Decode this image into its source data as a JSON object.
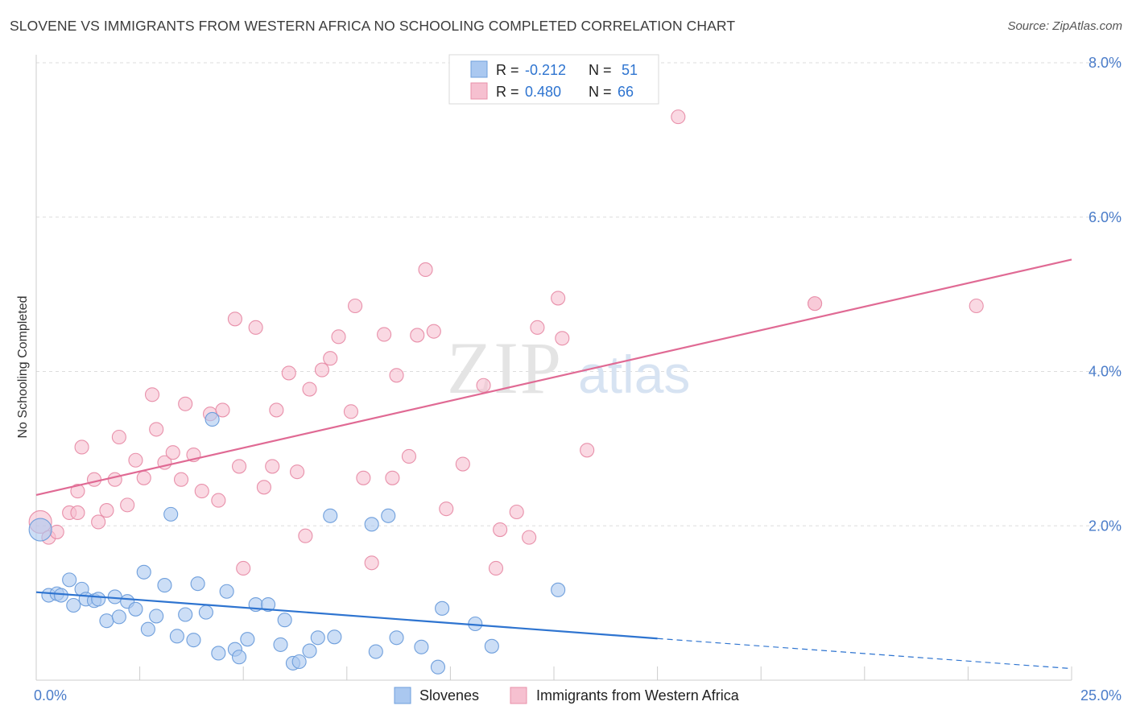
{
  "title": "SLOVENE VS IMMIGRANTS FROM WESTERN AFRICA NO SCHOOLING COMPLETED CORRELATION CHART",
  "source": "Source: ZipAtlas.com",
  "watermark": {
    "zip": "ZIP",
    "atlas": "atlas"
  },
  "legend": {
    "rows": [
      {
        "r_label": "R =",
        "r_value": "-0.212",
        "n_label": "N =",
        "n_value": "51"
      },
      {
        "r_label": "R =",
        "r_value": "0.480",
        "n_label": "N =",
        "n_value": "66"
      }
    ]
  },
  "bottom_legend": [
    "Slovenes",
    "Immigrants from Western Africa"
  ],
  "colors": {
    "blue_fill": "#aac8f0",
    "blue_stroke": "#6f9fdc",
    "blue_line": "#2e74d0",
    "pink_fill": "#f6c0d0",
    "pink_stroke": "#e890aa",
    "pink_line": "#e06a94",
    "tick_label": "#4a7cc9",
    "grid": "#dddddd"
  },
  "chart_data": {
    "type": "scatter",
    "title": "SLOVENE VS IMMIGRANTS FROM WESTERN AFRICA NO SCHOOLING COMPLETED CORRELATION CHART",
    "xlabel": "",
    "ylabel": "No Schooling Completed",
    "xlim": [
      0,
      25
    ],
    "ylim": [
      0,
      8
    ],
    "x_ticks": [
      "0.0%",
      "25.0%"
    ],
    "y_ticks": [
      {
        "value": 2,
        "label": "2.0%"
      },
      {
        "value": 4,
        "label": "4.0%"
      },
      {
        "value": 6,
        "label": "6.0%"
      },
      {
        "value": 8,
        "label": "8.0%"
      }
    ],
    "grid": true,
    "legend_position": "top-center",
    "series": [
      {
        "name": "Slovenes",
        "r": -0.212,
        "n": 51,
        "trend": {
          "x0": 0,
          "y0": 1.14,
          "x1": 15,
          "y1": 0.54,
          "dash_x1": 25,
          "dash_y1": 0.15
        },
        "points": [
          [
            0.1,
            1.95
          ],
          [
            0.3,
            1.1
          ],
          [
            0.5,
            1.12
          ],
          [
            0.6,
            1.1
          ],
          [
            0.8,
            1.3
          ],
          [
            0.9,
            0.97
          ],
          [
            1.1,
            1.18
          ],
          [
            1.2,
            1.05
          ],
          [
            1.4,
            1.03
          ],
          [
            1.5,
            1.05
          ],
          [
            1.7,
            0.77
          ],
          [
            1.9,
            1.08
          ],
          [
            2.0,
            0.82
          ],
          [
            2.2,
            1.02
          ],
          [
            2.4,
            0.92
          ],
          [
            2.6,
            1.4
          ],
          [
            2.7,
            0.66
          ],
          [
            2.9,
            0.83
          ],
          [
            3.1,
            1.23
          ],
          [
            3.25,
            2.15
          ],
          [
            3.4,
            0.57
          ],
          [
            3.6,
            0.85
          ],
          [
            3.8,
            0.52
          ],
          [
            3.9,
            1.25
          ],
          [
            4.1,
            0.88
          ],
          [
            4.25,
            3.38
          ],
          [
            4.4,
            0.35
          ],
          [
            4.6,
            1.15
          ],
          [
            4.8,
            0.4
          ],
          [
            4.9,
            0.3
          ],
          [
            5.1,
            0.53
          ],
          [
            5.3,
            0.98
          ],
          [
            5.6,
            0.98
          ],
          [
            5.9,
            0.46
          ],
          [
            6.0,
            0.78
          ],
          [
            6.2,
            0.22
          ],
          [
            6.35,
            0.24
          ],
          [
            6.6,
            0.38
          ],
          [
            6.8,
            0.55
          ],
          [
            7.1,
            2.13
          ],
          [
            7.2,
            0.56
          ],
          [
            8.1,
            2.02
          ],
          [
            8.2,
            0.37
          ],
          [
            8.5,
            2.13
          ],
          [
            8.7,
            0.55
          ],
          [
            9.3,
            0.43
          ],
          [
            9.7,
            0.17
          ],
          [
            9.8,
            0.93
          ],
          [
            10.6,
            0.73
          ],
          [
            11.0,
            0.44
          ],
          [
            12.6,
            1.17
          ]
        ]
      },
      {
        "name": "Immigrants from Western Africa",
        "r": 0.48,
        "n": 66,
        "trend": {
          "x0": 0,
          "y0": 2.4,
          "x1": 25,
          "y1": 5.45
        },
        "points": [
          [
            0.1,
            2.05
          ],
          [
            0.3,
            1.85
          ],
          [
            0.5,
            1.92
          ],
          [
            0.8,
            2.17
          ],
          [
            1.0,
            2.17
          ],
          [
            1.0,
            2.45
          ],
          [
            1.1,
            3.02
          ],
          [
            1.4,
            2.6
          ],
          [
            1.5,
            2.05
          ],
          [
            1.7,
            2.2
          ],
          [
            1.9,
            2.6
          ],
          [
            2.0,
            3.15
          ],
          [
            2.2,
            2.27
          ],
          [
            2.4,
            2.85
          ],
          [
            2.6,
            2.62
          ],
          [
            2.8,
            3.7
          ],
          [
            2.9,
            3.25
          ],
          [
            3.1,
            2.82
          ],
          [
            3.3,
            2.95
          ],
          [
            3.5,
            2.6
          ],
          [
            3.6,
            3.58
          ],
          [
            3.8,
            2.92
          ],
          [
            4.0,
            2.45
          ],
          [
            4.2,
            3.45
          ],
          [
            4.4,
            2.33
          ],
          [
            4.5,
            3.5
          ],
          [
            4.8,
            4.68
          ],
          [
            4.9,
            2.77
          ],
          [
            5.0,
            1.45
          ],
          [
            5.3,
            4.57
          ],
          [
            5.5,
            2.5
          ],
          [
            5.7,
            2.77
          ],
          [
            5.8,
            3.5
          ],
          [
            6.1,
            3.98
          ],
          [
            6.3,
            2.7
          ],
          [
            6.5,
            1.87
          ],
          [
            6.6,
            3.77
          ],
          [
            6.9,
            4.02
          ],
          [
            7.1,
            4.17
          ],
          [
            7.3,
            4.45
          ],
          [
            7.6,
            3.48
          ],
          [
            7.7,
            4.85
          ],
          [
            7.9,
            2.62
          ],
          [
            8.1,
            1.52
          ],
          [
            8.4,
            4.48
          ],
          [
            8.6,
            2.62
          ],
          [
            8.7,
            3.95
          ],
          [
            9.0,
            2.9
          ],
          [
            9.2,
            4.47
          ],
          [
            9.4,
            5.32
          ],
          [
            9.6,
            4.52
          ],
          [
            9.9,
            2.22
          ],
          [
            10.3,
            2.8
          ],
          [
            10.8,
            3.82
          ],
          [
            11.1,
            1.45
          ],
          [
            11.2,
            1.95
          ],
          [
            11.6,
            2.18
          ],
          [
            11.9,
            1.85
          ],
          [
            12.1,
            4.57
          ],
          [
            12.6,
            4.95
          ],
          [
            12.7,
            4.43
          ],
          [
            13.3,
            2.98
          ],
          [
            15.5,
            7.3
          ],
          [
            18.8,
            4.88
          ],
          [
            22.7,
            4.85
          ],
          [
            18.8,
            4.88
          ]
        ]
      }
    ]
  },
  "labels": {
    "x_min": "0.0%",
    "x_max": "25.0%"
  }
}
